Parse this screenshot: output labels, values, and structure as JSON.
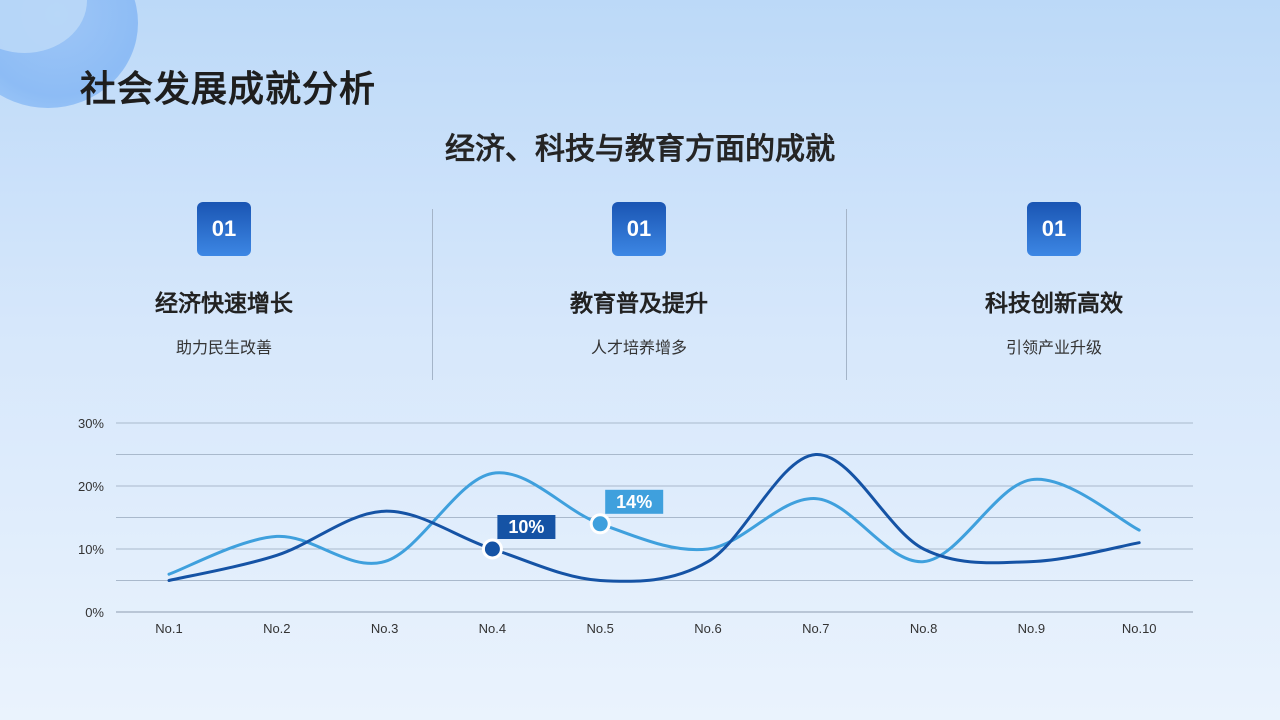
{
  "title": "社会发展成就分析",
  "subtitle": "经济、科技与教育方面的成就",
  "cards": [
    {
      "badge": "01",
      "title": "经济快速增长",
      "desc": "助力民生改善"
    },
    {
      "badge": "01",
      "title": "教育普及提升",
      "desc": "人才培养增多"
    },
    {
      "badge": "01",
      "title": "科技创新高效",
      "desc": "引领产业升级"
    }
  ],
  "colors": {
    "series_dark": "#1553a5",
    "series_light": "#3fa0dd",
    "badge_top": "#1a55b3",
    "badge_bottom": "#3d87e4"
  },
  "chart_data": {
    "type": "line",
    "categories": [
      "No.1",
      "No.2",
      "No.3",
      "No.4",
      "No.5",
      "No.6",
      "No.7",
      "No.8",
      "No.9",
      "No.10"
    ],
    "ylim": [
      0,
      30
    ],
    "yticks": [
      0,
      10,
      20,
      30
    ],
    "ytick_labels": [
      "0%",
      "10%",
      "20%",
      "30%"
    ],
    "grid": true,
    "series": [
      {
        "values": [
          5,
          9,
          16,
          10,
          5,
          8,
          25,
          10,
          8,
          11
        ],
        "color": "#1553a5"
      },
      {
        "values": [
          6,
          12,
          8,
          22,
          14,
          10,
          18,
          8,
          21,
          13
        ],
        "color": "#3fa0dd"
      }
    ],
    "annotations": [
      {
        "series": 0,
        "index": 3,
        "label": "10%"
      },
      {
        "series": 1,
        "index": 4,
        "label": "14%"
      }
    ]
  }
}
